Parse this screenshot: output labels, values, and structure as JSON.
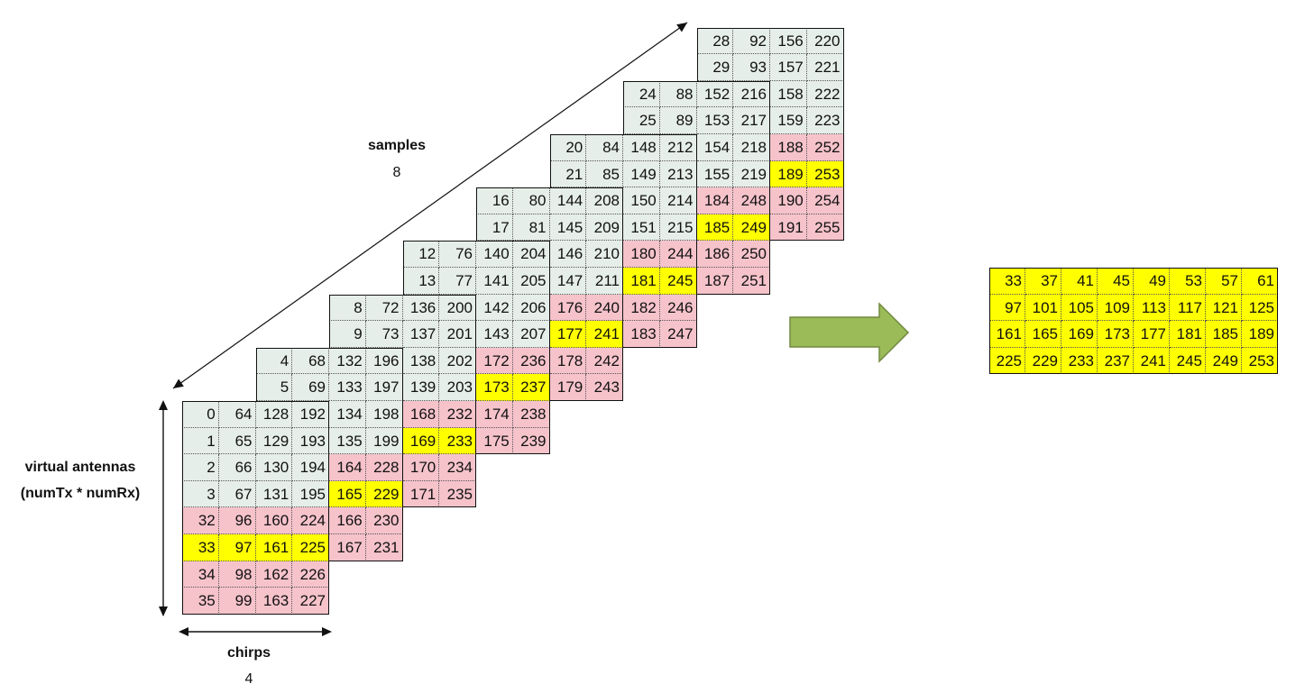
{
  "labels": {
    "samples_title": "samples",
    "samples_count": "8",
    "antennas_title": "virtual antennas",
    "antennas_subtitle": "(numTx * numRx)",
    "chirps_title": "chirps",
    "chirps_count": "4"
  },
  "colors": {
    "gray": "#e6eee9",
    "pink": "#f6c3cb",
    "yellow": "#ffff00",
    "arrow_fill": "#9bbb59",
    "arrow_stroke": "#71893f"
  },
  "cube": {
    "num_samples": 8,
    "num_chirps": 4,
    "num_antennas": 8,
    "highlight_antenna": 1
  },
  "result": {
    "rows": [
      [
        "33",
        "37",
        "41",
        "45",
        "49",
        "53",
        "57",
        "61"
      ],
      [
        "97",
        "101",
        "105",
        "109",
        "113",
        "117",
        "121",
        "125"
      ],
      [
        "161",
        "165",
        "169",
        "173",
        "177",
        "181",
        "185",
        "189"
      ],
      [
        "225",
        "229",
        "233",
        "237",
        "241",
        "245",
        "249",
        "253"
      ]
    ]
  }
}
